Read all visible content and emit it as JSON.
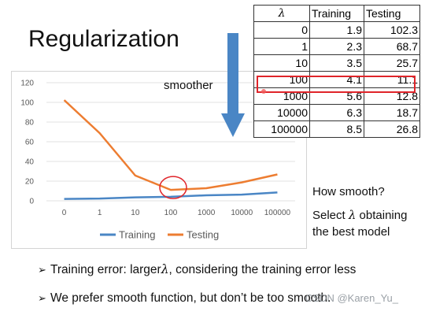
{
  "slide": {
    "title": "Regularization",
    "smoother_label": "smoother",
    "note_line1": "How smooth?",
    "note_line2_prefix": "Select ",
    "note_line2_suffix": " obtaining",
    "note_line3": "the best model",
    "lambda_symbol": "λ",
    "bullet1_prefix": "Training error: larger",
    "bullet1_suffix": ", considering the training error less",
    "bullet2": "We prefer smooth function, but don’t be too smooth.",
    "bullet_marker": "➢",
    "watermark": "CSDN @Karen_Yu_"
  },
  "table": {
    "headers": [
      "λ",
      "Training",
      "Testing"
    ],
    "rows": [
      [
        "0",
        "1.9",
        "102.3"
      ],
      [
        "1",
        "2.3",
        "68.7"
      ],
      [
        "10",
        "3.5",
        "25.7"
      ],
      [
        "100",
        "4.1",
        "11.1"
      ],
      [
        "1000",
        "5.6",
        "12.8"
      ],
      [
        "10000",
        "6.3",
        "18.7"
      ],
      [
        "100000",
        "8.5",
        "26.8"
      ]
    ],
    "highlighted_row": 3
  },
  "colors": {
    "training": "#4a86c5",
    "testing": "#ed7d31",
    "highlight": "#e0242a",
    "arrow": "#4a86c5",
    "grid": "#e0e0e0"
  },
  "chart_data": {
    "type": "line",
    "categories": [
      "0",
      "1",
      "10",
      "100",
      "1000",
      "10000",
      "100000"
    ],
    "series": [
      {
        "name": "Training",
        "values": [
          1.9,
          2.3,
          3.5,
          4.1,
          5.6,
          6.3,
          8.5
        ]
      },
      {
        "name": "Testing",
        "values": [
          102.3,
          68.7,
          25.7,
          11.1,
          12.8,
          18.7,
          26.8
        ]
      }
    ],
    "title": "",
    "xlabel": "",
    "ylabel": "",
    "ylim": [
      0,
      120
    ],
    "yticks": [
      0,
      20,
      40,
      60,
      80,
      100,
      120
    ],
    "grid": true,
    "legend_position": "bottom",
    "annotation": "circle at 100"
  }
}
